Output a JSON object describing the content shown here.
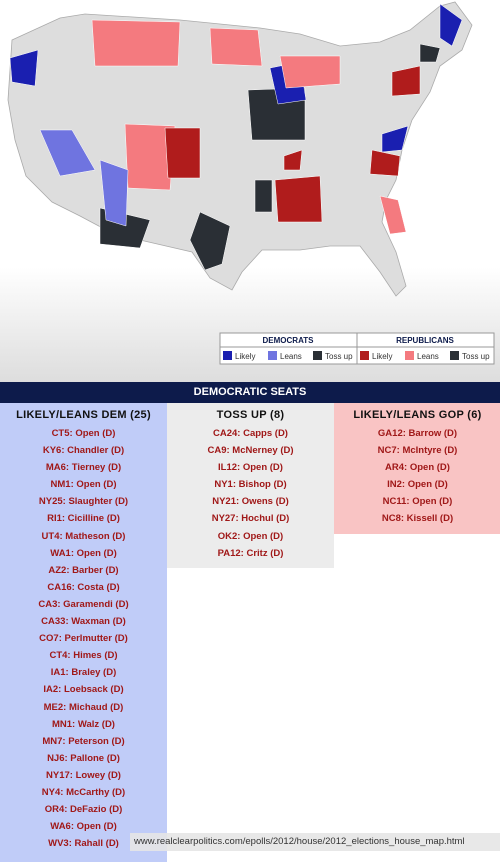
{
  "legend": {
    "groups": [
      {
        "title": "DEMOCRATS",
        "items": [
          "Likely",
          "Leans",
          "Toss up"
        ]
      },
      {
        "title": "REPUBLICANS",
        "items": [
          "Likely",
          "Leans",
          "Toss up"
        ]
      }
    ]
  },
  "table": {
    "title": "DEMOCRATIC SEATS",
    "columns": [
      {
        "header": "LIKELY/LEANS DEM (25)",
        "seats": [
          "CT5: Open (D)",
          "KY6: Chandler (D)",
          "MA6: Tierney (D)",
          "NM1: Open (D)",
          "NY25: Slaughter (D)",
          "RI1: Cicilline (D)",
          "UT4: Matheson (D)",
          "WA1: Open (D)",
          "AZ2: Barber (D)",
          "CA16: Costa (D)",
          "CA3: Garamendi (D)",
          "CA33: Waxman (D)",
          "CO7: Perlmutter (D)",
          "CT4: Himes (D)",
          "IA1: Braley (D)",
          "IA2: Loebsack (D)",
          "ME2: Michaud (D)",
          "MN1: Walz (D)",
          "MN7: Peterson (D)",
          "NJ6: Pallone (D)",
          "NY17: Lowey (D)",
          "NY4: McCarthy (D)",
          "OR4: DeFazio (D)",
          "WA6: Open (D)",
          "WV3: Rahall (D)"
        ]
      },
      {
        "header": "TOSS UP (8)",
        "seats": [
          "CA24: Capps (D)",
          "CA9: McNerney (D)",
          "IL12: Open (D)",
          "NY1: Bishop (D)",
          "NY21: Owens (D)",
          "NY27: Hochul (D)",
          "OK2: Open (D)",
          "PA12: Critz (D)"
        ]
      },
      {
        "header": "LIKELY/LEANS GOP (6)",
        "seats": [
          "GA12: Barrow (D)",
          "NC7: McIntyre (D)",
          "AR4: Open (D)",
          "IN2: Open (D)",
          "NC11: Open (D)",
          "NC8: Kissell (D)"
        ]
      }
    ]
  },
  "footer_url": "www.realclearpolitics.com/epolls/2012/house/2012_elections_house_map.html"
}
